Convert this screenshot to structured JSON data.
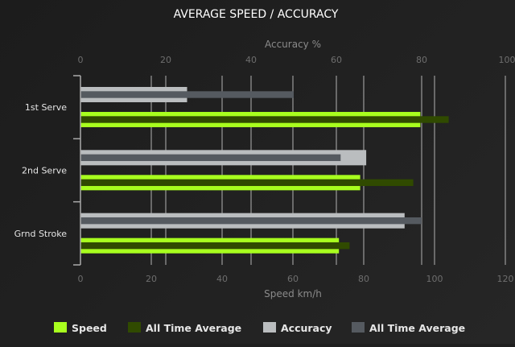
{
  "chart_data": {
    "type": "bar",
    "orientation": "horizontal",
    "title": "AVERAGE SPEED / ACCURACY",
    "categories": [
      "1st Serve",
      "2nd Serve",
      "Grnd Stroke"
    ],
    "speed_axis": {
      "label": "Speed km/h",
      "range": [
        0,
        120
      ],
      "ticks": [
        0,
        20,
        40,
        60,
        80,
        100,
        120
      ]
    },
    "accuracy_axis": {
      "label": "Accuracy %",
      "range": [
        0,
        100
      ],
      "ticks": [
        0,
        20,
        40,
        60,
        80,
        100
      ]
    },
    "series": [
      {
        "name": "Speed",
        "axis": "speed",
        "color": "#a8ff1e",
        "values": [
          96,
          79,
          73
        ]
      },
      {
        "name": "All Time Average",
        "axis": "speed",
        "color": "#304a00",
        "values": [
          104,
          94,
          76
        ]
      },
      {
        "name": "Accuracy",
        "axis": "accuracy",
        "color": "#babdbf",
        "values": [
          25,
          67,
          76
        ]
      },
      {
        "name": "All Time Average",
        "axis": "accuracy",
        "color": "#555a60",
        "values": [
          50,
          61,
          80
        ]
      }
    ],
    "grid": true,
    "legend_position": "bottom"
  }
}
